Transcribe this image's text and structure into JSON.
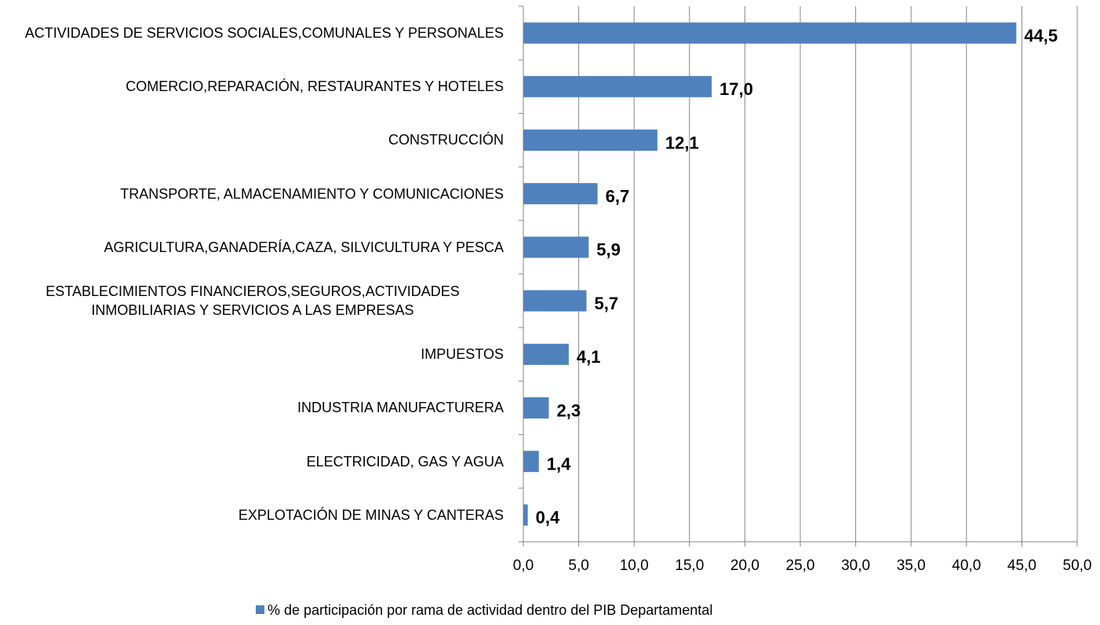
{
  "chart_data": {
    "type": "bar",
    "orientation": "horizontal",
    "categories": [
      "ACTIVIDADES DE SERVICIOS SOCIALES,COMUNALES Y PERSONALES",
      "COMERCIO,REPARACIÓN, RESTAURANTES Y HOTELES",
      "CONSTRUCCIÓN",
      "TRANSPORTE, ALMACENAMIENTO Y COMUNICACIONES",
      "AGRICULTURA,GANADERÍA,CAZA, SILVICULTURA Y PESCA",
      "ESTABLECIMIENTOS FINANCIEROS,SEGUROS,ACTIVIDADES INMOBILIARIAS Y SERVICIOS A LAS EMPRESAS",
      "IMPUESTOS",
      "INDUSTRIA MANUFACTURERA",
      "ELECTRICIDAD, GAS Y AGUA",
      "EXPLOTACIÓN DE MINAS Y CANTERAS"
    ],
    "series": [
      {
        "name": "% de participación por rama de actividad dentro del PIB Departamental",
        "color": "#4f81bd",
        "values": [
          44.5,
          17.0,
          12.1,
          6.7,
          5.9,
          5.7,
          4.1,
          2.3,
          1.4,
          0.4
        ],
        "value_labels": [
          "44,5",
          "17,0",
          "12,1",
          "6,7",
          "5,9",
          "5,7",
          "4,1",
          "2,3",
          "1,4",
          "0,4"
        ]
      }
    ],
    "xlim": [
      0,
      50
    ],
    "xticks": [
      {
        "value": 0,
        "label": "0,0"
      },
      {
        "value": 5,
        "label": "5,0"
      },
      {
        "value": 10,
        "label": "10,0"
      },
      {
        "value": 15,
        "label": "15,0"
      },
      {
        "value": 20,
        "label": "20,0"
      },
      {
        "value": 25,
        "label": "25,0"
      },
      {
        "value": 30,
        "label": "30,0"
      },
      {
        "value": 35,
        "label": "35,0"
      },
      {
        "value": 40,
        "label": "40,0"
      },
      {
        "value": 45,
        "label": "45,0"
      },
      {
        "value": 50,
        "label": "50,0"
      }
    ],
    "grid": true,
    "legend": "bottom"
  }
}
